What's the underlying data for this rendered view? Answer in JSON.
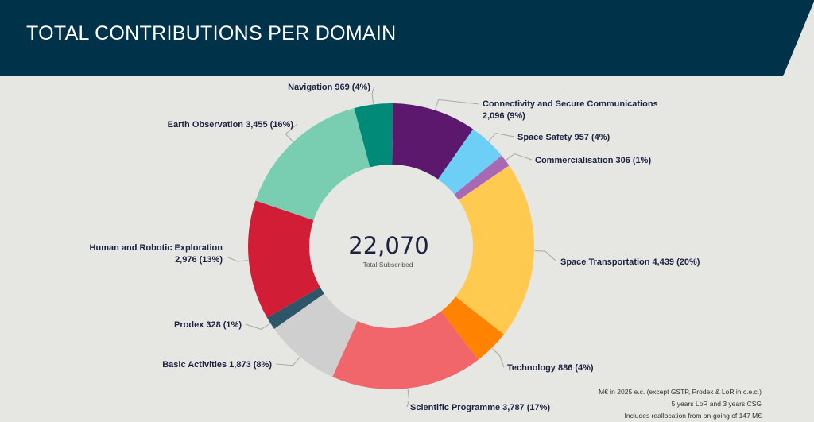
{
  "header": {
    "title": "TOTAL CONTRIBUTIONS PER DOMAIN",
    "background_color": "#00324a"
  },
  "chart_data": {
    "type": "pie",
    "variant": "donut",
    "center_total": "22,070",
    "center_caption": "Total Subscribed",
    "slices": [
      {
        "name": "Navigation",
        "value": 969,
        "value_text": "969",
        "percent": "4%",
        "color": "#008a77"
      },
      {
        "name": "Connectivity and Secure Communications",
        "value": 2096,
        "value_text": "2,096",
        "percent": "9%",
        "color": "#5c186c"
      },
      {
        "name": "Space Safety",
        "value": 957,
        "value_text": "957",
        "percent": "4%",
        "color": "#6dcff6"
      },
      {
        "name": "Commercialisation",
        "value": 306,
        "value_text": "306",
        "percent": "1%",
        "color": "#a868b3"
      },
      {
        "name": "Space Transportation",
        "value": 4439,
        "value_text": "4,439",
        "percent": "20%",
        "color": "#ffca4f"
      },
      {
        "name": "Technology",
        "value": 886,
        "value_text": "886",
        "percent": "4%",
        "color": "#ff8300"
      },
      {
        "name": "Scientific Programme",
        "value": 3787,
        "value_text": "3,787",
        "percent": "17%",
        "color": "#f1666b"
      },
      {
        "name": "Basic Activities",
        "value": 1873,
        "value_text": "1,873",
        "percent": "8%",
        "color": "#cfcfcf"
      },
      {
        "name": "Prodex",
        "value": 328,
        "value_text": "328",
        "percent": "1%",
        "color": "#2d5668"
      },
      {
        "name": "Human and Robotic Exploration",
        "value": 2976,
        "value_text": "2,976",
        "percent": "13%",
        "color": "#d11d36"
      },
      {
        "name": "Earth Observation",
        "value": 3455,
        "value_text": "3,455",
        "percent": "16%",
        "color": "#79ceb2"
      }
    ],
    "labels": [
      {
        "lines": [
          "Navigation 969 (4%)"
        ]
      },
      {
        "lines": [
          "Connectivity and Secure Communications",
          "2,096 (9%)"
        ]
      },
      {
        "lines": [
          "Space Safety 957 (4%)"
        ]
      },
      {
        "lines": [
          "Commercialisation 306 (1%)"
        ]
      },
      {
        "lines": [
          "Space Transportation 4,439 (20%)"
        ]
      },
      {
        "lines": [
          "Technology 886 (4%)"
        ]
      },
      {
        "lines": [
          "Scientific Programme 3,787 (17%)"
        ]
      },
      {
        "lines": [
          "Basic Activities 1,873 (8%)"
        ]
      },
      {
        "lines": [
          "Prodex 328 (1%)"
        ]
      },
      {
        "lines": [
          "Human and Robotic Exploration",
          "2,976 (13%)"
        ]
      },
      {
        "lines": [
          "Earth Observation 3,455 (16%)"
        ]
      }
    ],
    "footnotes": [
      "M€ in 2025 e.c. (except GSTP, Prodex & LoR in c.e.c.)",
      "5 years LoR and 3 years CSG",
      "Includes reallocation from on-going of 147 M€"
    ]
  }
}
